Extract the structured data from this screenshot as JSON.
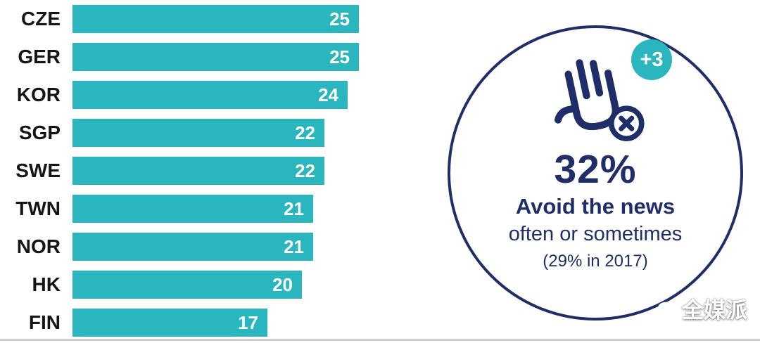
{
  "chart_data": {
    "type": "bar",
    "orientation": "horizontal",
    "categories": [
      "CZE",
      "GER",
      "KOR",
      "SGP",
      "SWE",
      "TWN",
      "NOR",
      "HK",
      "FIN"
    ],
    "values": [
      25,
      25,
      24,
      22,
      22,
      21,
      21,
      20,
      17
    ],
    "title": "",
    "xlabel": "",
    "ylabel": "",
    "xlim": [
      0,
      25
    ],
    "grid": false,
    "legend": false,
    "bar_color": "#29b6bf",
    "value_label_color": "#ffffff",
    "category_label_color": "#151518"
  },
  "callout": {
    "stat": "32%",
    "line1": "Avoid the news",
    "line2": "often or sometimes",
    "line3": "(29% in 2017)",
    "badge": "+3",
    "icon": "hand-stop-x-icon",
    "circle_border_color": "#1f2d69",
    "badge_color": "#29b6bf",
    "text_color": "#1f2d69"
  },
  "watermark": {
    "text": "全媒派",
    "logo_icon": "camera-swirl-icon"
  },
  "colors": {
    "teal": "#29b6bf",
    "navy": "#1f2d69",
    "divider_gray": "#cfcfcf",
    "background": "#ffffff"
  }
}
